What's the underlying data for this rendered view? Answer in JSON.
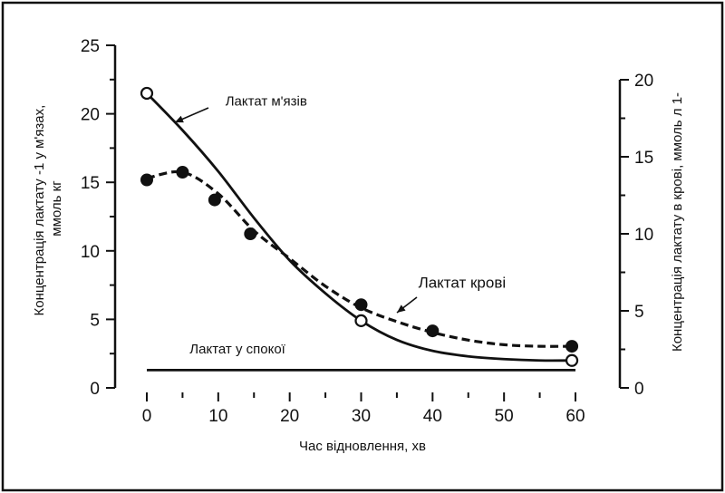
{
  "chart_data": {
    "type": "line",
    "xlabel": "Час відновлення, хв",
    "ylabel_left": "Концентрація лактату -1 у м'язах, ммоль кг",
    "ylabel_right": "Концентрація лактату в крові, ммоль л 1-",
    "xlim": [
      0,
      60
    ],
    "ylim_left": [
      0,
      25
    ],
    "ylim_right": [
      0,
      20
    ],
    "x_ticks": [
      "0",
      "10",
      "20",
      "30",
      "40",
      "50",
      "60"
    ],
    "y_left_ticks": [
      "0",
      "5",
      "10",
      "15",
      "20",
      "25"
    ],
    "y_right_ticks": [
      "0",
      "5",
      "10",
      "15",
      "20"
    ],
    "grid": false,
    "series": [
      {
        "name": "Лактат м'язів",
        "axis": "left",
        "style": "solid",
        "marker": "open-circle",
        "curve_x": [
          0,
          5,
          10,
          15,
          20,
          25,
          30,
          35,
          40,
          45,
          50,
          55,
          59.5
        ],
        "curve_y": [
          21.5,
          18.8,
          15.8,
          12.4,
          9.3,
          6.9,
          4.9,
          3.5,
          2.7,
          2.3,
          2.1,
          2.0,
          2.0
        ],
        "marker_x": [
          0,
          30,
          59.5
        ],
        "marker_y": [
          21.5,
          4.9,
          2.0
        ]
      },
      {
        "name": "Лактат крові",
        "axis": "right",
        "style": "dashed",
        "marker": "filled-circle",
        "curve_x": [
          0,
          5,
          10,
          15,
          20,
          25,
          30,
          35,
          40,
          45,
          50,
          55,
          59.5
        ],
        "curve_y": [
          13.6,
          14.0,
          12.6,
          10.2,
          8.4,
          6.6,
          5.2,
          4.3,
          3.6,
          3.1,
          2.8,
          2.7,
          2.7
        ],
        "marker_x": [
          0,
          5,
          9.5,
          14.5,
          30,
          40,
          59.5
        ],
        "marker_y": [
          13.5,
          14.0,
          12.2,
          10.0,
          5.4,
          3.7,
          2.7
        ]
      },
      {
        "name": "Лактат у спокої",
        "axis": "left",
        "style": "solid",
        "curve_x": [
          0,
          60
        ],
        "curve_y": [
          1.3,
          1.3
        ]
      }
    ],
    "annotations": [
      {
        "text": "Лактат м'язів",
        "x": 11,
        "y_axis": "left",
        "y": 20.6
      },
      {
        "text": "Лактат крові",
        "x": 38,
        "y_axis": "left",
        "y": 7.3
      },
      {
        "text": "Лактат у спокої",
        "x": 6,
        "y_axis": "left",
        "y": 2.5
      }
    ]
  }
}
